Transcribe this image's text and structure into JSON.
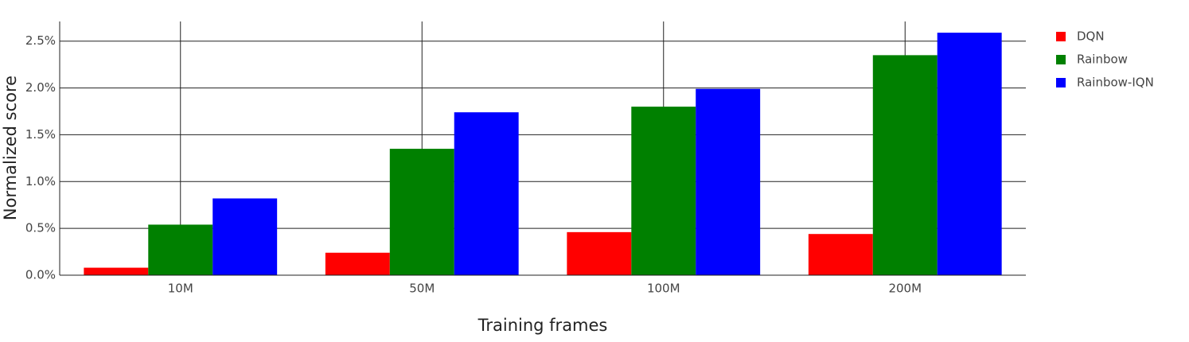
{
  "chart_data": {
    "type": "bar",
    "xlabel": "Training frames",
    "ylabel": "Normalized score",
    "categories": [
      "10M",
      "50M",
      "100M",
      "200M"
    ],
    "series": [
      {
        "name": "DQN",
        "color": "#ff0000",
        "values": [
          0.08,
          0.24,
          0.46,
          0.44
        ]
      },
      {
        "name": "Rainbow",
        "color": "#008000",
        "values": [
          0.54,
          1.35,
          1.8,
          2.35
        ]
      },
      {
        "name": "Rainbow-IQN",
        "color": "#0000ff",
        "values": [
          0.82,
          1.74,
          1.99,
          2.59
        ]
      }
    ],
    "ylim": [
      0,
      2.71
    ],
    "yticks": [
      {
        "value": 0,
        "label": "0.0%"
      },
      {
        "value": 0.5,
        "label": "0.5%"
      },
      {
        "value": 1,
        "label": "1.0%"
      },
      {
        "value": 1.5,
        "label": "1.5%"
      },
      {
        "value": 2,
        "label": "2.0%"
      },
      {
        "value": 2.5,
        "label": "2.5%"
      }
    ],
    "grid": true,
    "legend": "upper right"
  }
}
